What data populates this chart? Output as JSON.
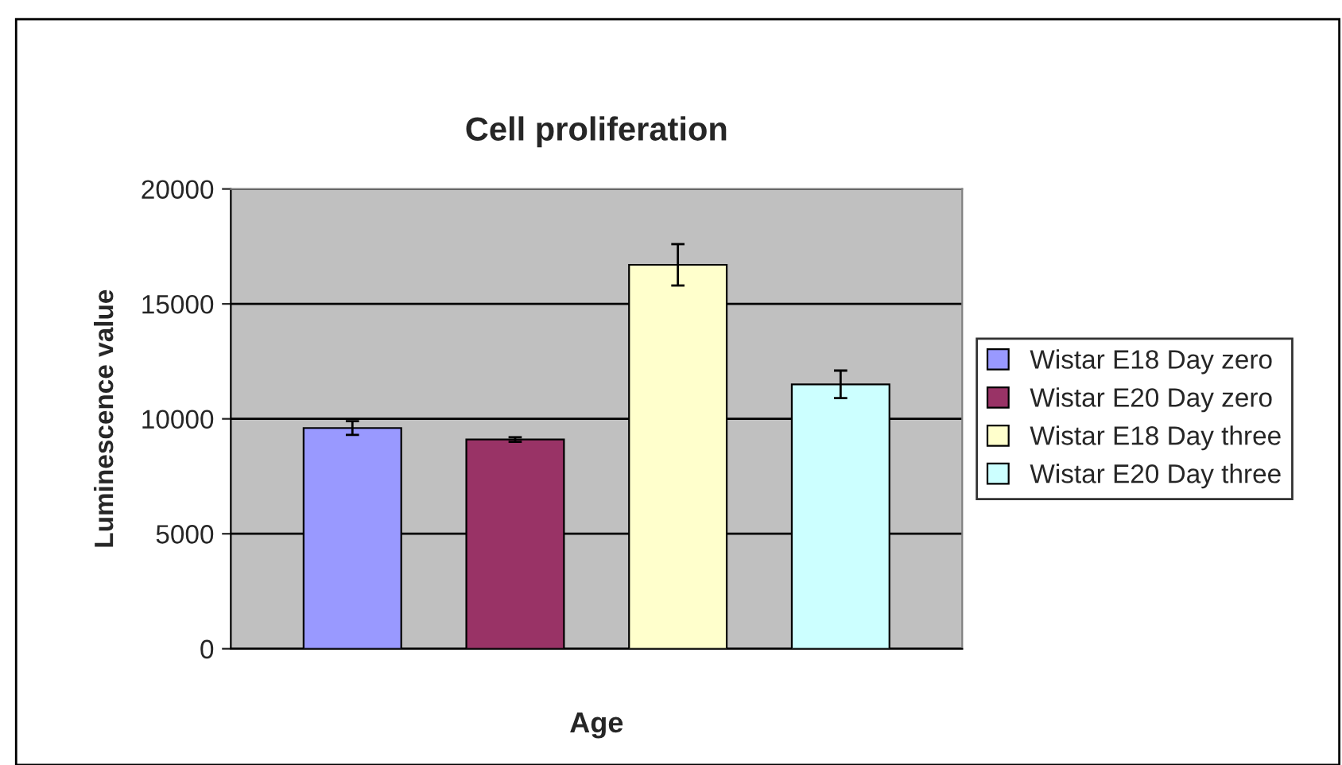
{
  "chart_data": {
    "type": "bar",
    "title": "Cell proliferation",
    "xlabel": "Age",
    "ylabel": "Luminescence value",
    "categories": [
      null
    ],
    "series": [
      {
        "name": "Wistar E18 Day zero",
        "color": "#9999ff",
        "values": [
          9600
        ],
        "errors": [
          300
        ]
      },
      {
        "name": "Wistar E20 Day zero",
        "color": "#993366",
        "values": [
          9100
        ],
        "errors": [
          100
        ]
      },
      {
        "name": "Wistar E18 Day three",
        "color": "#ffffcc",
        "values": [
          16700
        ],
        "errors": [
          900
        ]
      },
      {
        "name": "Wistar E20 Day three",
        "color": "#ccffff",
        "values": [
          11500
        ],
        "errors": [
          600
        ]
      }
    ],
    "ylim": [
      0,
      20000
    ],
    "yticks": [
      0,
      5000,
      10000,
      15000,
      20000
    ],
    "grid": "y",
    "legend": "right"
  }
}
